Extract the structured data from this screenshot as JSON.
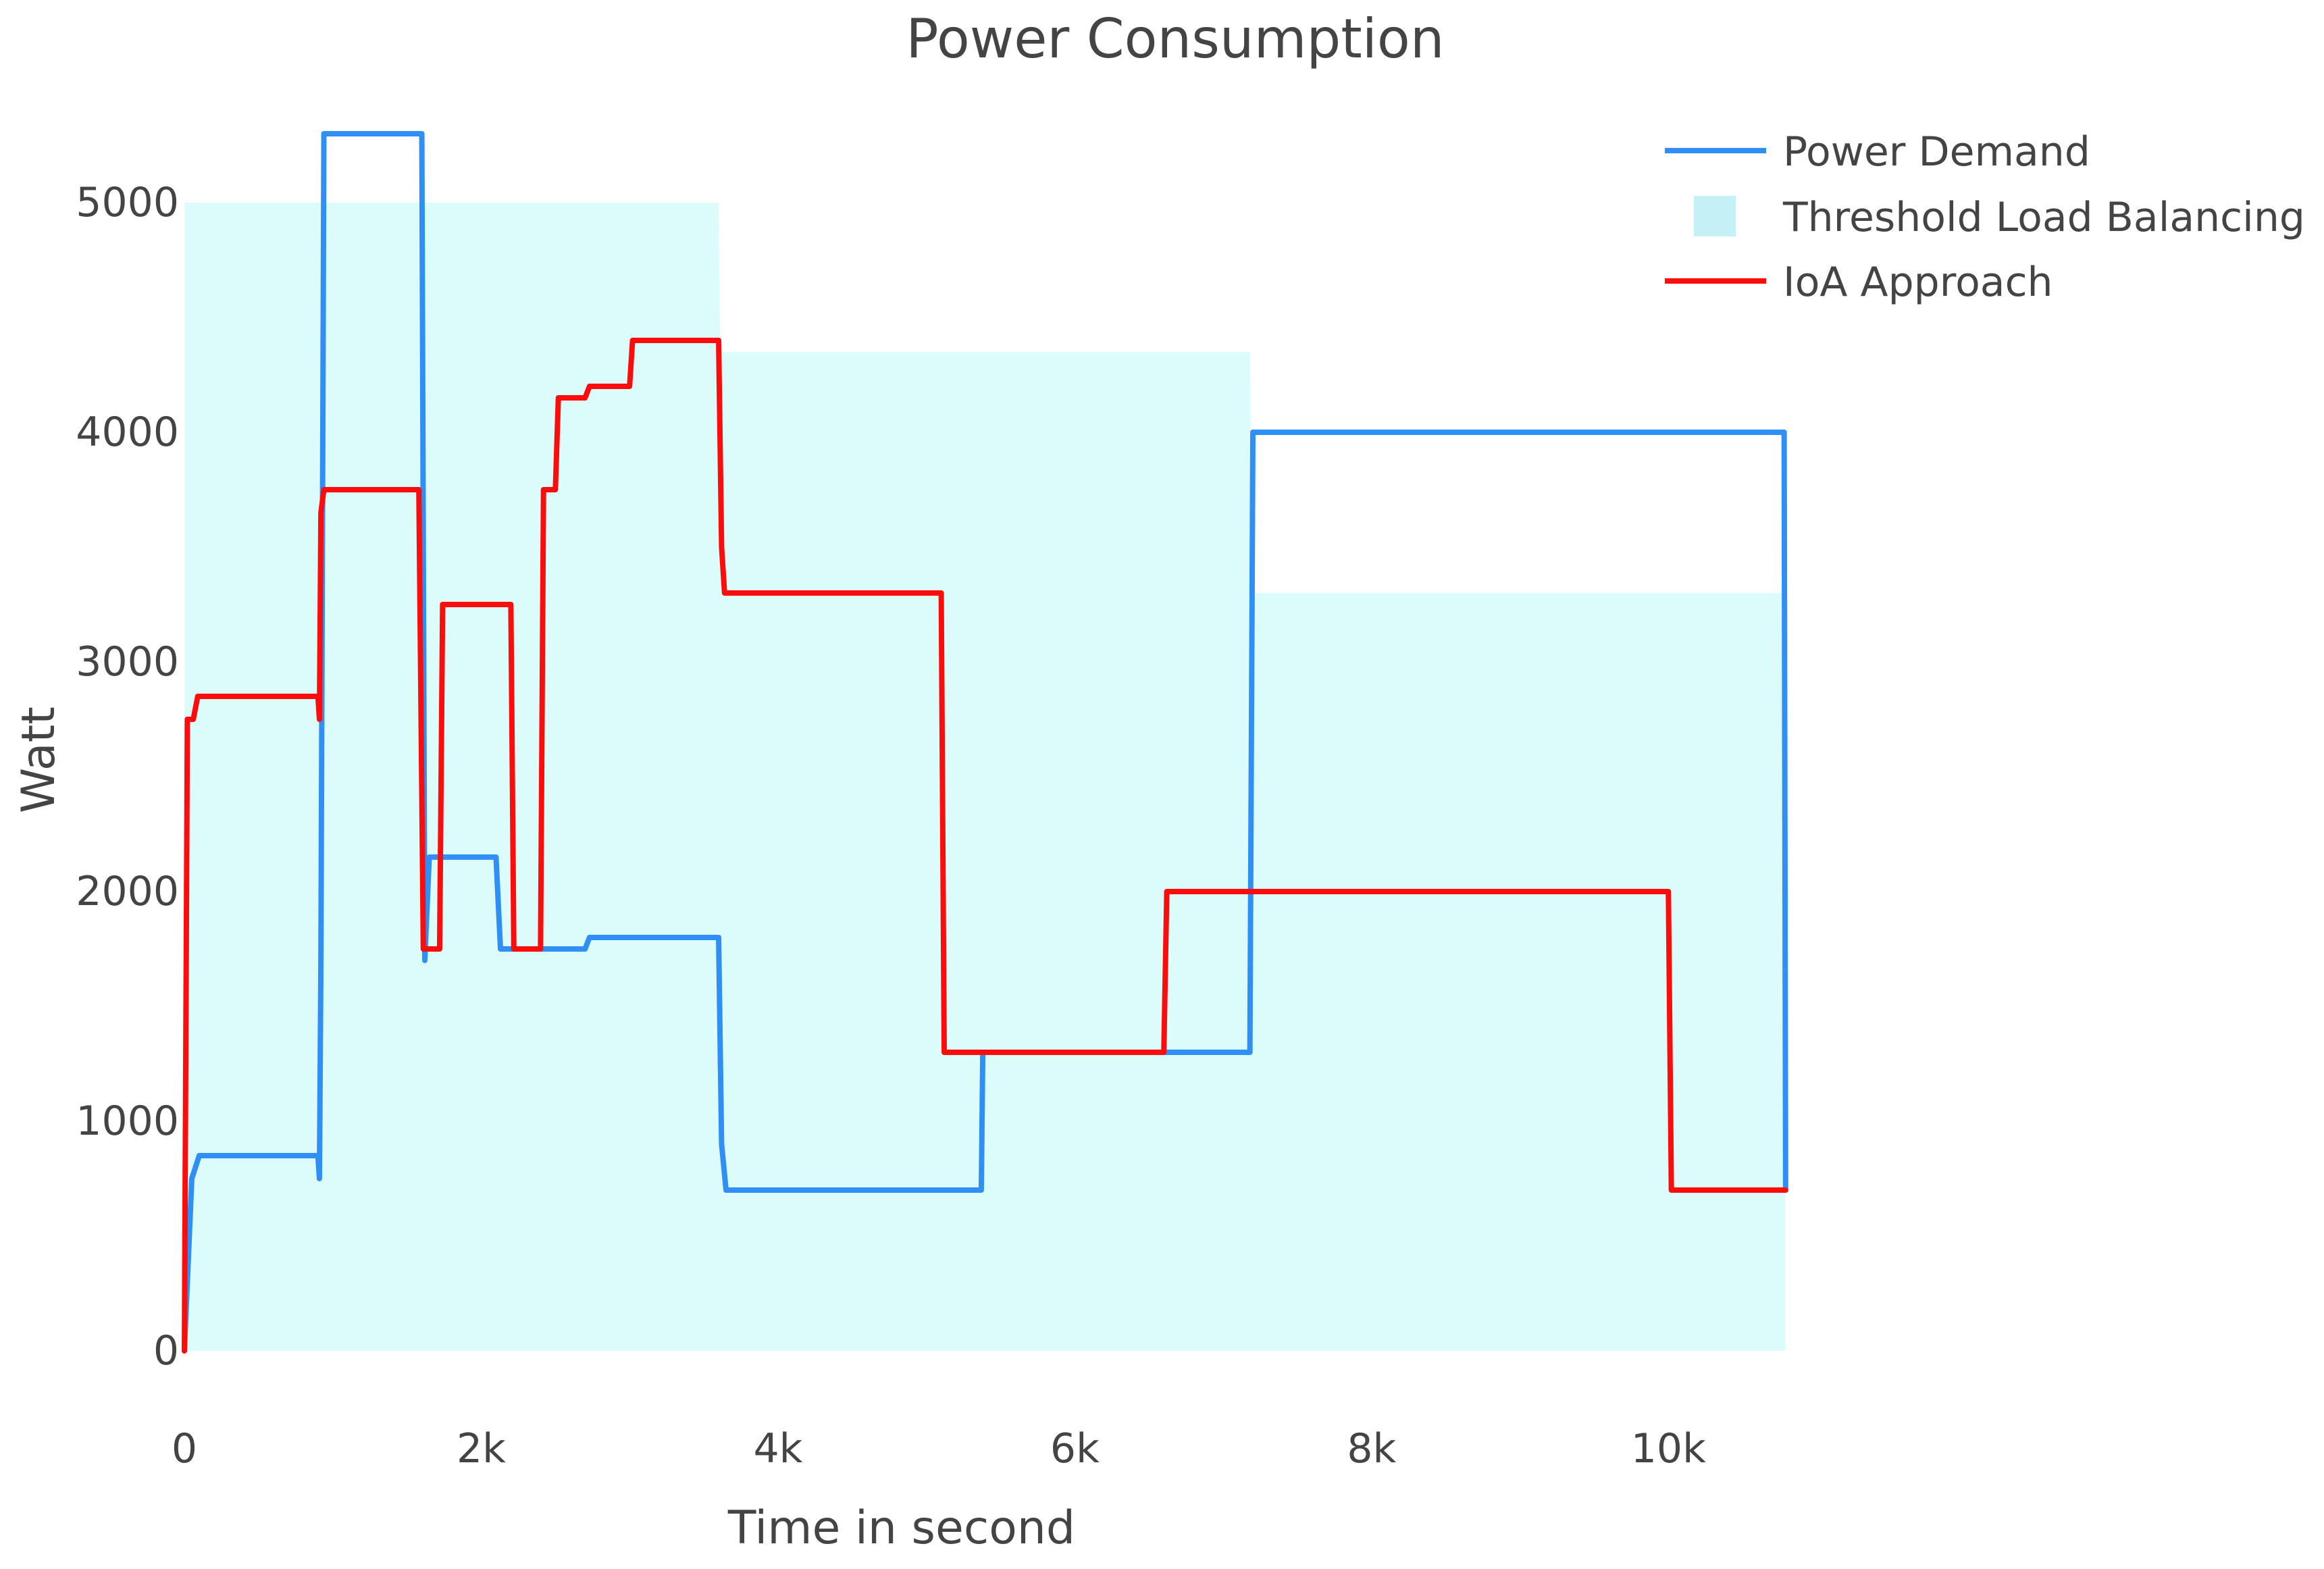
{
  "chart_data": {
    "type": "line",
    "title": "Power Consumption",
    "xlabel": "Time in second",
    "ylabel": "Watt",
    "xlim": [
      0,
      11000
    ],
    "ylim": [
      0,
      5500
    ],
    "x_ticks": [
      0,
      2000,
      4000,
      6000,
      8000,
      10000
    ],
    "x_tick_labels": [
      "0",
      "2k",
      "4k",
      "6k",
      "8k",
      "10k"
    ],
    "y_ticks": [
      0,
      1000,
      2000,
      3000,
      4000,
      5000
    ],
    "y_tick_labels": [
      "0",
      "1000",
      "2000",
      "3000",
      "4000",
      "5000"
    ],
    "grid": false,
    "legend_position": "top-right",
    "colors": {
      "demand": "#2f8ff5",
      "threshold": "#dcfcfc",
      "threshold_legend": "#c4f1f6",
      "ioa": "#fb0d0d",
      "text": "#444444"
    },
    "series": [
      {
        "name": "Power Demand",
        "kind": "line",
        "x": [
          0,
          50,
          100,
          900,
          910,
          920,
          940,
          1600,
          1620,
          1650,
          2100,
          2130,
          2700,
          2730,
          3600,
          3620,
          3650,
          5370,
          5380,
          7180,
          7200,
          10780,
          10790
        ],
        "y": [
          0,
          750,
          850,
          850,
          750,
          1700,
          5300,
          5300,
          1700,
          2150,
          2150,
          1750,
          1750,
          1800,
          1800,
          900,
          700,
          700,
          1300,
          1300,
          4000,
          4000,
          700
        ]
      },
      {
        "name": "Threshold Load Balancing",
        "kind": "area",
        "x": [
          0,
          3600,
          3610,
          7180,
          7190,
          10790
        ],
        "y": [
          5000,
          5000,
          4350,
          4350,
          3300,
          3300
        ]
      },
      {
        "name": "IoA Approach",
        "kind": "line",
        "x": [
          0,
          20,
          60,
          90,
          900,
          910,
          920,
          940,
          1580,
          1610,
          1720,
          1740,
          2200,
          2220,
          2400,
          2420,
          2500,
          2520,
          2700,
          2730,
          3000,
          3020,
          3600,
          3620,
          3640,
          5100,
          5120,
          6600,
          6620,
          10000,
          10020,
          10790
        ],
        "y": [
          0,
          2750,
          2750,
          2850,
          2850,
          2750,
          3650,
          3750,
          3750,
          1750,
          1750,
          3250,
          3250,
          1750,
          1750,
          3750,
          3750,
          4150,
          4150,
          4200,
          4200,
          4400,
          4400,
          3500,
          3300,
          3300,
          1300,
          1300,
          2000,
          2000,
          700,
          700
        ]
      }
    ]
  }
}
